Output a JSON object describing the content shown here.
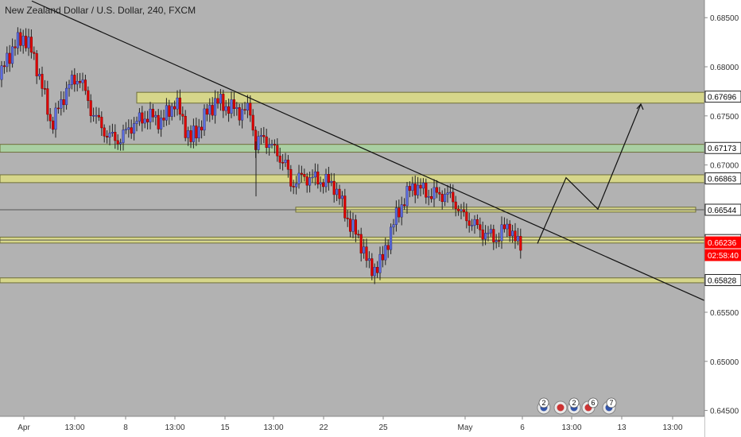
{
  "chart_data": {
    "type": "candlestick",
    "title": "New Zealand Dollar / U.S. Dollar, 240, FXCM",
    "ylim": [
      0.6444,
      0.6868
    ],
    "y_ticks": [
      {
        "value": 0.685,
        "label": "0.68500"
      },
      {
        "value": 0.68,
        "label": "0.68000"
      },
      {
        "value": 0.675,
        "label": "0.67500"
      },
      {
        "value": 0.67,
        "label": "0.67000"
      },
      {
        "value": 0.655,
        "label": "0.65500"
      },
      {
        "value": 0.65,
        "label": "0.65000"
      },
      {
        "value": 0.645,
        "label": "0.64500"
      }
    ],
    "x_labels": [
      "Apr",
      "13:00",
      "8",
      "13:00",
      "15",
      "13:00",
      "22",
      "25",
      "May",
      "6",
      "13:00",
      "13",
      "13:00"
    ],
    "price_labels": [
      {
        "value": 0.67696,
        "label": "0.67696",
        "style": "level"
      },
      {
        "value": 0.67173,
        "label": "0.67173",
        "style": "level"
      },
      {
        "value": 0.66863,
        "label": "0.66863",
        "style": "level"
      },
      {
        "value": 0.66544,
        "label": "0.66544",
        "style": "level"
      },
      {
        "value": 0.66235,
        "label": "0.66235",
        "style": "level"
      },
      {
        "value": 0.66236,
        "label": "0.66236",
        "style": "current"
      },
      {
        "value": 0.66236,
        "label": "02:58:40",
        "style": "countdown"
      },
      {
        "value": 0.65828,
        "label": "0.65828",
        "style": "level"
      }
    ],
    "zones": [
      {
        "top": 0.6774,
        "bottom": 0.6763,
        "color": "#d6d68a",
        "kind": "resistance"
      },
      {
        "top": 0.6721,
        "bottom": 0.6713,
        "color": "#a9cfa2",
        "kind": "support"
      },
      {
        "top": 0.669,
        "bottom": 0.6682,
        "color": "#d6d68a",
        "kind": "resistance"
      },
      {
        "top": 0.6657,
        "bottom": 0.6652,
        "color": "#d6d68a",
        "kind": "resistance"
      },
      {
        "top": 0.66265,
        "bottom": 0.66205,
        "color": "#d6d68a",
        "kind": "support"
      },
      {
        "top": 0.6585,
        "bottom": 0.658,
        "color": "#d6d68a",
        "kind": "support"
      }
    ],
    "up_color": "#5b6ee1",
    "down_color": "#e30000",
    "news_event_counts": [
      "2",
      "2",
      "6",
      "7"
    ]
  }
}
